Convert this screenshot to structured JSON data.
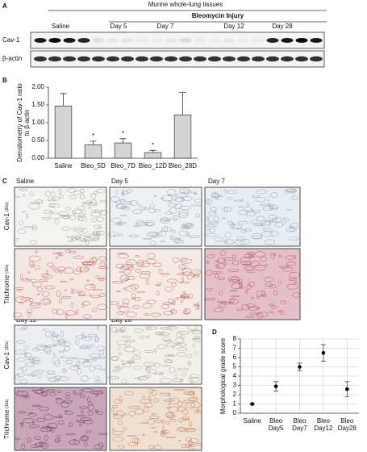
{
  "panel_a": {
    "label": "A",
    "title": "Murine whole-lung tissues",
    "group_label": "Bleomycin Injury",
    "lanes": [
      "Saline",
      "Day 5",
      "Day 7",
      "Day 12",
      "Day 28"
    ],
    "rows": [
      "Cav-1",
      "β-actin"
    ]
  },
  "chart_data": [
    {
      "type": "bar",
      "panel_label": "B",
      "y_label": "Densitometry of Cav-1 ratio to β-actin",
      "categories": [
        "Saline",
        "Bleo_5D",
        "Bleo_7D",
        "Bleo_12D",
        "Bleo_28D"
      ],
      "values": [
        1.47,
        0.38,
        0.43,
        0.16,
        1.22
      ],
      "errors": [
        0.35,
        0.1,
        0.12,
        0.06,
        0.63
      ],
      "annotations": [
        null,
        "*",
        "*",
        "*",
        null
      ],
      "color": "#d4d4d4",
      "ylim": [
        0,
        2
      ],
      "yticks": [
        {
          "value": 0,
          "label": "0.00"
        },
        {
          "value": 0.5,
          "label": "0.50"
        },
        {
          "value": 1,
          "label": "1.00"
        },
        {
          "value": 1.5,
          "label": "1.50"
        },
        {
          "value": 2,
          "label": "2.00"
        }
      ]
    },
    {
      "type": "dot",
      "panel_label": "D",
      "y_label": "Morphological grade score",
      "categories": [
        "Saline",
        "Bleo Day5",
        "Bleo Day7",
        "Bleo Day12",
        "Bleo Day28"
      ],
      "values": [
        1.0,
        2.9,
        5.0,
        6.5,
        2.6
      ],
      "errors": [
        0.1,
        0.5,
        0.4,
        0.9,
        0.8
      ],
      "color": "#000000",
      "ylim": [
        0,
        8
      ],
      "yticks": [
        0,
        1,
        2,
        3,
        4,
        5,
        6,
        7,
        8
      ],
      "grid": true
    }
  ],
  "panel_c": {
    "label": "C",
    "columns": [
      "Saline",
      "Day 5",
      "Day 7",
      "Day 12",
      "Day 28"
    ],
    "rows": [
      {
        "stain": "Cav-1",
        "magnification": "(20x)"
      },
      {
        "stain": "Trichrome",
        "magnification": "(10x)"
      }
    ]
  }
}
